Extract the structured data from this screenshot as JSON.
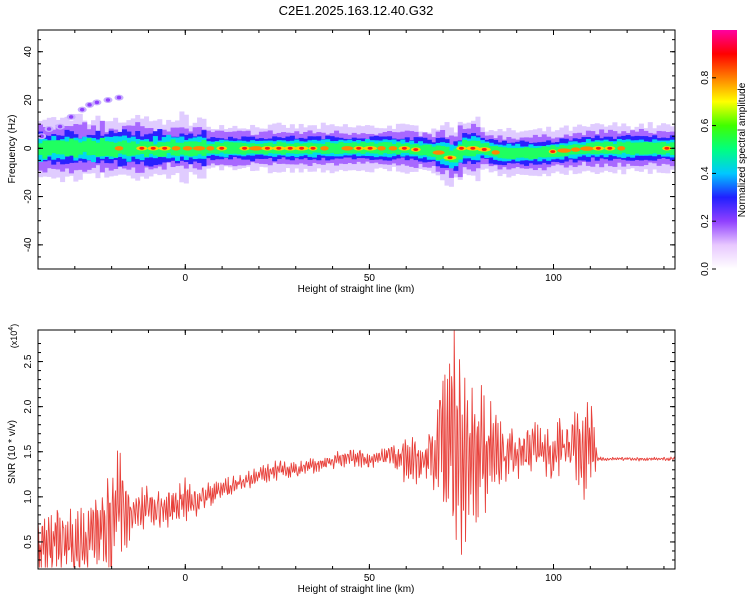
{
  "title": "C2E1.2025.163.12.40.G32",
  "colors": {
    "snr_line": "#e8413b",
    "spectrum_core": "#ff1a10",
    "spectrum_halo": "#c8b0ff"
  },
  "chart_data": [
    {
      "type": "heatmap",
      "xlabel": "Height of straight line (km)",
      "ylabel": "Frequency (Hz)",
      "xlim": [
        -40,
        133
      ],
      "ylim": [
        -50,
        49
      ],
      "xticks": [
        "0",
        "50",
        "100"
      ],
      "yticks": [
        "40",
        "20",
        "0",
        "-20",
        "-40"
      ],
      "colorbar": {
        "label": "Normalized spectral amplitude",
        "range": [
          0.0,
          1.0
        ],
        "ticks": [
          "0.0",
          "0.2",
          "0.4",
          "0.6",
          "0.8"
        ],
        "colormap": [
          "#ffffff",
          "#e8c8ff",
          "#9040ff",
          "#2020ff",
          "#00c8ff",
          "#00ff80",
          "#40ff00",
          "#ffff00",
          "#ff8000",
          "#ff0000",
          "#ff00a0"
        ]
      },
      "ridge": {
        "description_points_x": [
          -40,
          -30,
          -20,
          -15,
          0,
          20,
          40,
          60,
          70,
          72,
          75,
          80,
          85,
          95,
          110,
          133
        ],
        "center_freq": [
          0,
          0,
          0,
          0,
          0,
          0,
          0,
          0,
          -2,
          -4,
          0,
          0,
          -2,
          -2,
          0,
          0
        ]
      },
      "sidebands": {
        "x": [
          -39,
          -37,
          -34,
          -31,
          -28,
          -26,
          -24,
          -21,
          -18
        ],
        "freq": [
          5,
          8,
          9,
          13,
          16,
          18,
          19,
          20,
          21
        ]
      }
    },
    {
      "type": "line",
      "xlabel": "Height of straight line (km)",
      "ylabel": "SNR (10 * v/v)",
      "multiplier_label": "(x10",
      "multiplier_exp": "4",
      "xlim": [
        -40,
        133
      ],
      "ylim": [
        0.2,
        2.85
      ],
      "xticks": [
        "0",
        "50",
        "100"
      ],
      "yticks": [
        "0.5",
        "1.0",
        "1.5",
        "2.0",
        "2.5"
      ],
      "series": [
        {
          "x": [
            -40,
            -35,
            -30,
            -25,
            -20,
            -18,
            -15,
            -10,
            -5,
            0,
            5,
            10,
            15,
            20,
            25,
            30,
            35,
            40,
            45,
            50,
            55,
            60,
            65,
            68,
            70,
            71,
            73,
            75,
            77,
            80,
            83,
            85,
            88,
            90,
            95,
            100,
            105,
            108,
            110,
            111,
            112,
            115,
            120,
            125,
            133
          ],
          "y": [
            0.4,
            0.5,
            0.45,
            0.55,
            0.7,
            1.0,
            0.8,
            0.9,
            0.85,
            0.95,
            1.0,
            1.1,
            1.15,
            1.25,
            1.3,
            1.3,
            1.35,
            1.4,
            1.45,
            1.4,
            1.45,
            1.4,
            1.4,
            1.45,
            1.6,
            1.5,
            1.8,
            1.4,
            1.55,
            1.45,
            1.5,
            1.4,
            1.5,
            1.45,
            1.55,
            1.5,
            1.6,
            1.5,
            1.7,
            1.5,
            1.42,
            1.42,
            1.42,
            1.42,
            1.42
          ],
          "spread": [
            0.35,
            0.4,
            0.35,
            0.45,
            0.5,
            0.6,
            0.3,
            0.2,
            0.2,
            0.25,
            0.15,
            0.12,
            0.1,
            0.1,
            0.1,
            0.08,
            0.08,
            0.08,
            0.1,
            0.08,
            0.1,
            0.25,
            0.25,
            0.4,
            0.9,
            1.0,
            1.3,
            1.1,
            0.9,
            0.7,
            0.6,
            0.4,
            0.3,
            0.3,
            0.25,
            0.3,
            0.35,
            0.6,
            0.9,
            0.3,
            0.02,
            0.02,
            0.02,
            0.02,
            0.02
          ]
        }
      ]
    }
  ]
}
